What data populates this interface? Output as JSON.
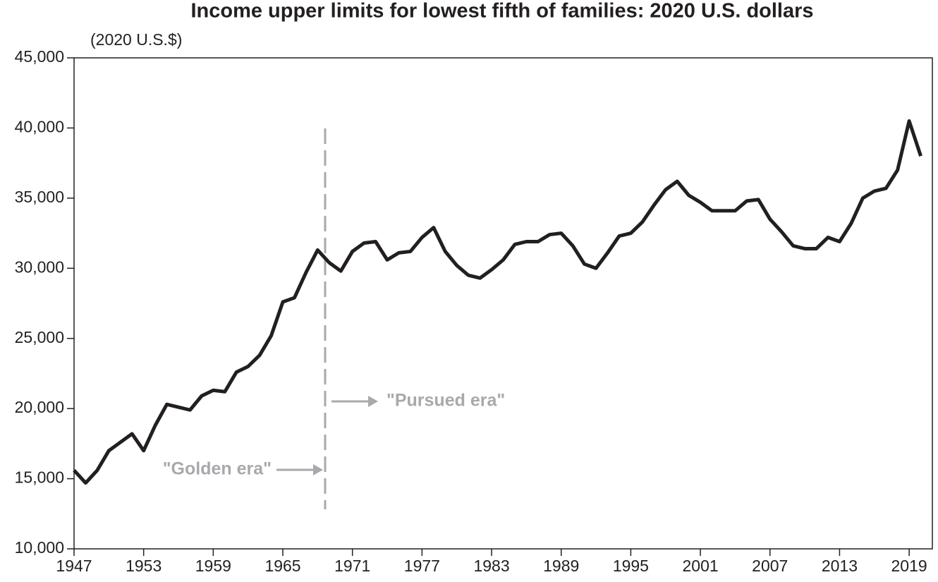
{
  "chart_data": {
    "type": "line",
    "title": "Income upper limits for lowest fifth of families: 2020 U.S. dollars",
    "y_axis_label": "(2020 U.S.$)",
    "annotations": [
      "\"Golden era\"",
      "\"Pursued era\""
    ],
    "x": [
      1947,
      1948,
      1949,
      1950,
      1951,
      1952,
      1953,
      1954,
      1955,
      1956,
      1957,
      1958,
      1959,
      1960,
      1961,
      1962,
      1963,
      1964,
      1965,
      1966,
      1967,
      1968,
      1969,
      1970,
      1971,
      1972,
      1973,
      1974,
      1975,
      1976,
      1977,
      1978,
      1979,
      1980,
      1981,
      1982,
      1983,
      1984,
      1985,
      1986,
      1987,
      1988,
      1989,
      1990,
      1991,
      1992,
      1993,
      1994,
      1995,
      1996,
      1997,
      1998,
      1999,
      2000,
      2001,
      2002,
      2003,
      2004,
      2005,
      2006,
      2007,
      2008,
      2009,
      2010,
      2011,
      2012,
      2013,
      2014,
      2015,
      2016,
      2017,
      2018,
      2019,
      2020
    ],
    "series": [
      {
        "name": "Income upper limit",
        "color": "#231f20",
        "values": [
          15600,
          14700,
          15600,
          17000,
          17600,
          18200,
          17000,
          18800,
          20300,
          20100,
          19900,
          20900,
          21300,
          21200,
          22600,
          23000,
          23800,
          25200,
          27600,
          27900,
          29700,
          31300,
          30400,
          29800,
          31200,
          31800,
          31900,
          30600,
          31100,
          31200,
          32200,
          32900,
          31200,
          30200,
          29500,
          29300,
          29900,
          30600,
          31700,
          31900,
          31900,
          32400,
          32500,
          31600,
          30300,
          30000,
          31100,
          32300,
          32500,
          33300,
          34500,
          35600,
          36200,
          35200,
          34700,
          34100,
          34100,
          34100,
          34800,
          34900,
          33500,
          32600,
          31600,
          31400,
          31400,
          32200,
          31900,
          33200,
          35000,
          35500,
          35700,
          37000,
          40500,
          38000
        ]
      }
    ],
    "xlim": [
      1947,
      2021
    ],
    "xticks": [
      1947,
      1953,
      1959,
      1965,
      1971,
      1977,
      1983,
      1989,
      1995,
      2001,
      2007,
      2013,
      2019
    ],
    "ylim": [
      10000,
      45000
    ],
    "yticks": [
      {
        "value": 10000,
        "label": "10,000"
      },
      {
        "value": 15000,
        "label": "15,000"
      },
      {
        "value": 20000,
        "label": "20,000"
      },
      {
        "value": 25000,
        "label": "25,000"
      },
      {
        "value": 30000,
        "label": "30,000"
      },
      {
        "value": 35000,
        "label": "35,000"
      },
      {
        "value": 40000,
        "label": "40,000"
      },
      {
        "value": 45000,
        "label": "45,000"
      }
    ],
    "grid": false
  }
}
